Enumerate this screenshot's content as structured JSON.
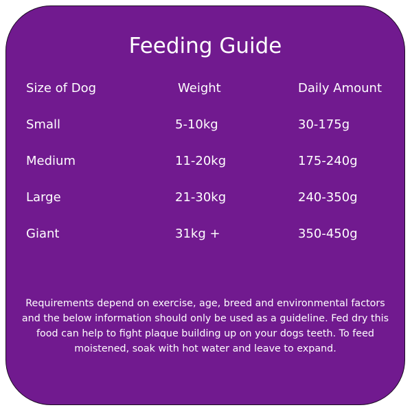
{
  "title": "Feeding Guide",
  "headers": [
    "Size of Dog",
    "Weight",
    "Daily Amount"
  ],
  "rows": [
    [
      "Small",
      "5-10kg",
      "30-175g"
    ],
    [
      "Medium",
      "11-20kg",
      "175-240g"
    ],
    [
      "Large",
      "21-30kg",
      "240-350g"
    ],
    [
      "Giant",
      "31kg +",
      "350-450g"
    ]
  ],
  "note": "Requirements depend on exercise, age, breed and environmental factors and the below information should only be used as a guideline. Fed dry this food can help to fight plaque building up on your dogs teeth. To feed moistened, soak with hot water and leave to expand.",
  "colors": {
    "background": "#711a8f",
    "text": "#ffffff"
  }
}
